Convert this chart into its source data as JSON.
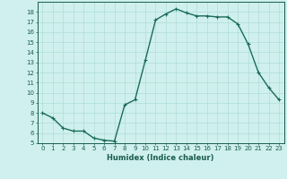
{
  "x": [
    0,
    1,
    2,
    3,
    4,
    5,
    6,
    7,
    8,
    9,
    10,
    11,
    12,
    13,
    14,
    15,
    16,
    17,
    18,
    19,
    20,
    21,
    22,
    23
  ],
  "y": [
    8.0,
    7.5,
    6.5,
    6.2,
    6.2,
    5.5,
    5.3,
    5.2,
    8.8,
    9.3,
    13.2,
    17.2,
    17.8,
    18.3,
    17.9,
    17.6,
    17.6,
    17.5,
    17.5,
    16.8,
    14.8,
    12.0,
    10.5,
    9.3
  ],
  "line_color": "#1a6b5a",
  "marker": "+",
  "marker_size": 3,
  "bg_color": "#cff0ee",
  "grid_color": "#b0ddd8",
  "xlabel": "Humidex (Indice chaleur)",
  "xlim": [
    -0.5,
    23.5
  ],
  "ylim": [
    5,
    19.0
  ],
  "yticks": [
    5,
    6,
    7,
    8,
    9,
    10,
    11,
    12,
    13,
    14,
    15,
    16,
    17,
    18
  ],
  "xticks": [
    0,
    1,
    2,
    3,
    4,
    5,
    6,
    7,
    8,
    9,
    10,
    11,
    12,
    13,
    14,
    15,
    16,
    17,
    18,
    19,
    20,
    21,
    22,
    23
  ],
  "font_color": "#1a5c4e",
  "linewidth": 1.0,
  "tick_fontsize": 5.0,
  "xlabel_fontsize": 6.0
}
